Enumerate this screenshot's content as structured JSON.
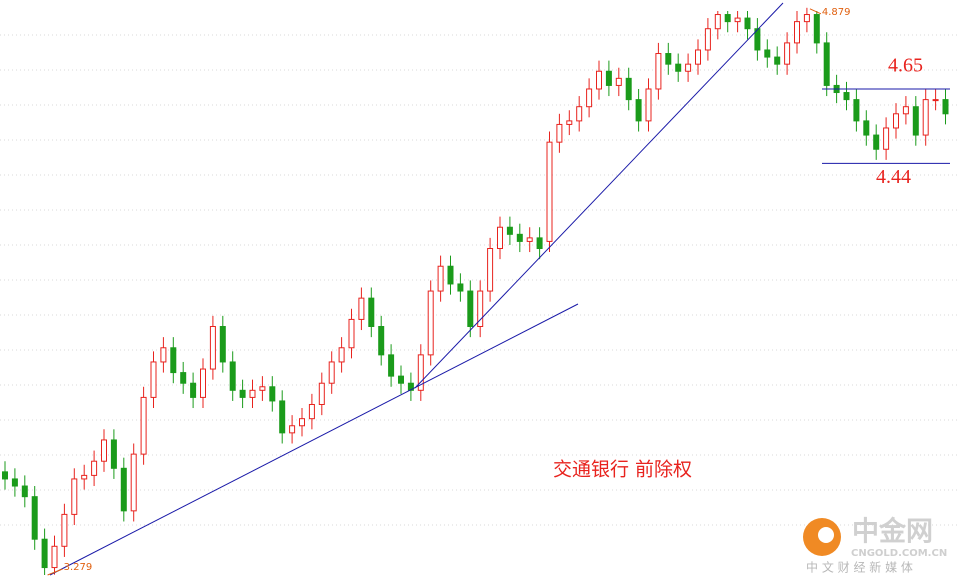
{
  "chart_data": {
    "type": "candlestick",
    "title": "交通银行 前除权",
    "open": [
      3.57,
      3.55,
      3.53,
      3.5,
      3.38,
      3.3,
      3.36,
      3.45,
      3.55,
      3.56,
      3.6,
      3.66,
      3.58,
      3.46,
      3.62,
      3.78,
      3.88,
      3.92,
      3.85,
      3.82,
      3.78,
      3.86,
      3.98,
      3.88,
      3.8,
      3.78,
      3.8,
      3.81,
      3.77,
      3.68,
      3.7,
      3.72,
      3.76,
      3.82,
      3.88,
      3.92,
      4.0,
      4.06,
      3.98,
      3.9,
      3.84,
      3.82,
      3.8,
      3.9,
      4.08,
      4.15,
      4.1,
      4.08,
      3.98,
      4.08,
      4.2,
      4.26,
      4.24,
      4.22,
      4.23,
      4.22,
      4.5,
      4.55,
      4.56,
      4.6,
      4.65,
      4.7,
      4.66,
      4.68,
      4.62,
      4.56,
      4.65,
      4.75,
      4.72,
      4.7,
      4.72,
      4.76,
      4.82,
      4.86,
      4.84,
      4.85,
      4.82,
      4.76,
      4.74,
      4.72,
      4.78,
      4.84,
      4.86,
      4.78,
      4.66,
      4.64,
      4.62,
      4.56,
      4.52,
      4.48,
      4.54,
      4.58,
      4.6,
      4.52,
      4.62,
      4.62
    ],
    "high": [
      3.6,
      3.58,
      3.56,
      3.53,
      3.41,
      3.39,
      3.48,
      3.58,
      3.59,
      3.63,
      3.69,
      3.69,
      3.61,
      3.65,
      3.81,
      3.91,
      3.95,
      3.95,
      3.88,
      3.85,
      3.89,
      4.01,
      4.01,
      3.91,
      3.83,
      3.83,
      3.84,
      3.84,
      3.8,
      3.73,
      3.75,
      3.79,
      3.85,
      3.91,
      3.95,
      4.03,
      4.09,
      4.09,
      4.01,
      3.93,
      3.87,
      3.85,
      3.93,
      4.11,
      4.18,
      4.18,
      4.13,
      4.11,
      4.11,
      4.23,
      4.29,
      4.29,
      4.27,
      4.26,
      4.26,
      4.53,
      4.58,
      4.59,
      4.63,
      4.68,
      4.73,
      4.73,
      4.71,
      4.71,
      4.65,
      4.68,
      4.78,
      4.78,
      4.75,
      4.75,
      4.79,
      4.85,
      4.87,
      4.87,
      4.87,
      4.87,
      4.85,
      4.79,
      4.77,
      4.81,
      4.87,
      4.879,
      4.87,
      4.81,
      4.69,
      4.67,
      4.65,
      4.59,
      4.55,
      4.57,
      4.61,
      4.63,
      4.63,
      4.65,
      4.65,
      4.65
    ],
    "low": [
      3.52,
      3.5,
      3.47,
      3.35,
      3.279,
      3.28,
      3.33,
      3.42,
      3.52,
      3.53,
      3.57,
      3.55,
      3.43,
      3.43,
      3.59,
      3.75,
      3.85,
      3.82,
      3.79,
      3.75,
      3.75,
      3.83,
      3.85,
      3.77,
      3.75,
      3.75,
      3.77,
      3.74,
      3.65,
      3.65,
      3.67,
      3.69,
      3.73,
      3.79,
      3.85,
      3.89,
      3.97,
      3.95,
      3.87,
      3.81,
      3.79,
      3.77,
      3.77,
      3.87,
      4.05,
      4.07,
      4.05,
      3.95,
      3.95,
      4.05,
      4.17,
      4.21,
      4.19,
      4.19,
      4.17,
      4.19,
      4.47,
      4.52,
      4.53,
      4.57,
      4.62,
      4.63,
      4.63,
      4.59,
      4.53,
      4.53,
      4.62,
      4.69,
      4.67,
      4.67,
      4.69,
      4.73,
      4.79,
      4.81,
      4.81,
      4.79,
      4.73,
      4.71,
      4.69,
      4.69,
      4.75,
      4.81,
      4.75,
      4.63,
      4.61,
      4.59,
      4.53,
      4.49,
      4.45,
      4.45,
      4.51,
      4.55,
      4.49,
      4.49,
      4.59,
      4.55
    ],
    "close": [
      3.55,
      3.53,
      3.5,
      3.38,
      3.3,
      3.36,
      3.45,
      3.55,
      3.56,
      3.6,
      3.66,
      3.58,
      3.46,
      3.62,
      3.78,
      3.88,
      3.92,
      3.85,
      3.82,
      3.78,
      3.86,
      3.98,
      3.88,
      3.8,
      3.78,
      3.8,
      3.81,
      3.77,
      3.68,
      3.7,
      3.72,
      3.76,
      3.82,
      3.88,
      3.92,
      4.0,
      4.06,
      3.98,
      3.9,
      3.84,
      3.82,
      3.8,
      3.9,
      4.08,
      4.15,
      4.1,
      4.08,
      3.98,
      4.08,
      4.2,
      4.26,
      4.24,
      4.22,
      4.23,
      4.2,
      4.5,
      4.55,
      4.56,
      4.6,
      4.65,
      4.7,
      4.66,
      4.68,
      4.62,
      4.56,
      4.65,
      4.75,
      4.72,
      4.7,
      4.72,
      4.76,
      4.82,
      4.86,
      4.84,
      4.85,
      4.82,
      4.76,
      4.74,
      4.72,
      4.78,
      4.84,
      4.86,
      4.78,
      4.66,
      4.64,
      4.62,
      4.56,
      4.52,
      4.48,
      4.54,
      4.58,
      4.6,
      4.52,
      4.62,
      4.62,
      4.58
    ],
    "up_color": "#e8231e",
    "down_color": "#1b9b1b",
    "ylim": [
      3.248,
      4.901
    ],
    "high_marker": 4.879,
    "low_marker": 3.279,
    "resistance": 4.65,
    "support": 4.44,
    "level_color": "#1a1aa8"
  },
  "watermark": {
    "name": "中金网",
    "url": "CNGOLD.COM.CN",
    "slogan": "中 文 财 经 新 媒 体"
  }
}
